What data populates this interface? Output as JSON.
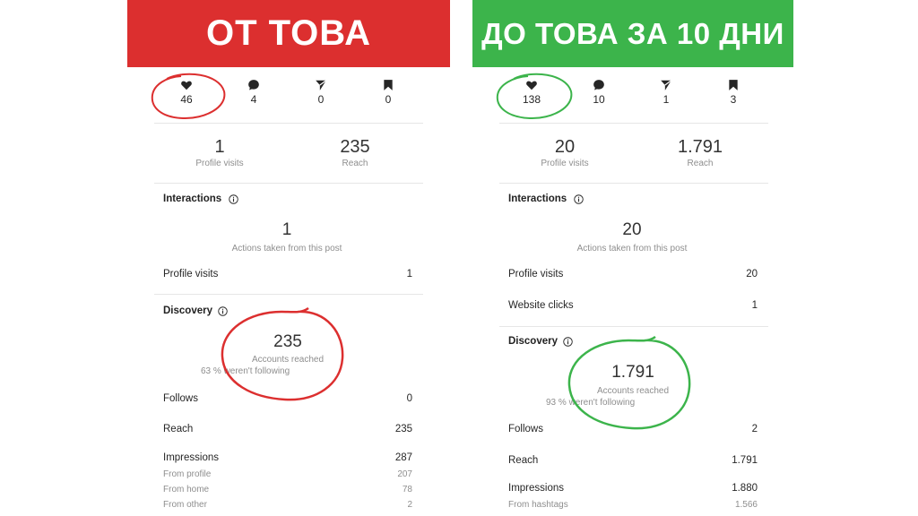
{
  "colors": {
    "before": "#dc2f2f",
    "after": "#3cb44b"
  },
  "left": {
    "banner": "ОТ ТОВА",
    "stats": {
      "likes": "46",
      "comments": "4",
      "shares": "0",
      "saves": "0"
    },
    "summary": {
      "profile_visits_value": "1",
      "profile_visits_label": "Profile visits",
      "reach_value": "235",
      "reach_label": "Reach"
    },
    "interactions": {
      "title": "Interactions",
      "value": "1",
      "subtitle": "Actions taken from this post",
      "rows": [
        {
          "label": "Profile visits",
          "value": "1"
        }
      ]
    },
    "discovery": {
      "title": "Discovery",
      "value": "235",
      "subtitle": "Accounts reached",
      "note": "63 % weren't following",
      "rows": [
        {
          "label": "Follows",
          "value": "0"
        },
        {
          "label": "Reach",
          "value": "235"
        },
        {
          "label": "Impressions",
          "value": "287"
        }
      ],
      "subrows": [
        {
          "label": "From profile",
          "value": "207"
        },
        {
          "label": "From home",
          "value": "78"
        },
        {
          "label": "From other",
          "value": "2"
        }
      ]
    }
  },
  "right": {
    "banner": "ДО ТОВА ЗА 10 ДНИ",
    "stats": {
      "likes": "138",
      "comments": "10",
      "shares": "1",
      "saves": "3"
    },
    "summary": {
      "profile_visits_value": "20",
      "profile_visits_label": "Profile visits",
      "reach_value": "1.791",
      "reach_label": "Reach"
    },
    "interactions": {
      "title": "Interactions",
      "value": "20",
      "subtitle": "Actions taken from this post",
      "rows": [
        {
          "label": "Profile visits",
          "value": "20"
        },
        {
          "label": "Website clicks",
          "value": "1"
        }
      ]
    },
    "discovery": {
      "title": "Discovery",
      "value": "1.791",
      "subtitle": "Accounts reached",
      "note": "93 % weren't following",
      "rows": [
        {
          "label": "Follows",
          "value": "2"
        },
        {
          "label": "Reach",
          "value": "1.791"
        },
        {
          "label": "Impressions",
          "value": "1.880"
        }
      ],
      "subrows": [
        {
          "label": "From hashtags",
          "value": "1.566"
        }
      ]
    }
  }
}
